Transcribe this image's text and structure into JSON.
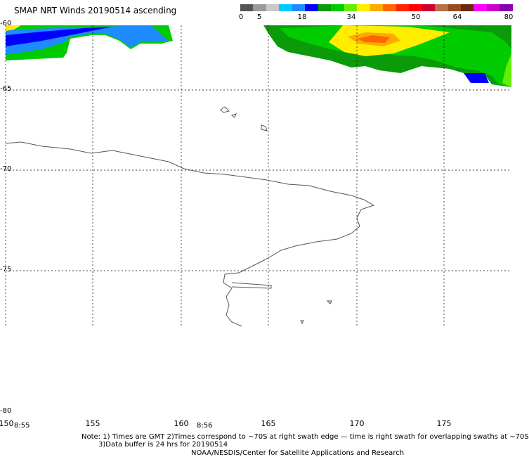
{
  "title": "SMAP NRT Winds 20190514 ascending",
  "colorbar": {
    "labels": [
      "0",
      "5",
      "18",
      "34",
      "50",
      "64",
      "80"
    ],
    "colors": [
      "#555555",
      "#9a9a9a",
      "#c8c8c8",
      "#00c8ff",
      "#1e8cff",
      "#0000ff",
      "#0a9a0a",
      "#00cc00",
      "#66ee00",
      "#ffee00",
      "#ffaa00",
      "#ff6600",
      "#ff2200",
      "#ff0000",
      "#cc0033",
      "#b87044",
      "#9a4a1e",
      "#6a2a0a",
      "#ff00ff",
      "#cc00cc",
      "#8a00aa"
    ]
  },
  "lat_labels": [
    "-60",
    "-65",
    "-70",
    "-75",
    "-80"
  ],
  "lon_labels": [
    "150",
    "155",
    "160",
    "165",
    "170",
    "175"
  ],
  "time_labels": [
    "8:55",
    "8:56"
  ],
  "notes": {
    "line1": "Note: 1) Times are GMT 2)Times correspond to ~70S at right swath edge — time is right swath for overlapping swaths at ~70S",
    "line2": "3)Data buffer is 24 hrs for 20190514",
    "line3": "NOAA/NESDIS/Center for Satellite Applications and Research"
  }
}
